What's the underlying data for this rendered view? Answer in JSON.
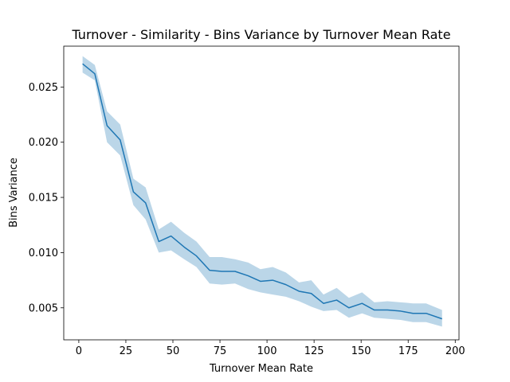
{
  "chart_data": {
    "type": "line",
    "title": "Turnover - Similarity - Bins Variance by Turnover Mean Rate",
    "xlabel": "Turnover Mean Rate",
    "ylabel": "Bins Variance",
    "xlim": [
      -8,
      202
    ],
    "ylim": [
      0.0021,
      0.0287
    ],
    "x_ticks": [
      0,
      25,
      50,
      75,
      100,
      125,
      150,
      175,
      200
    ],
    "x_tick_labels": [
      "0",
      "25",
      "50",
      "75",
      "100",
      "125",
      "150",
      "175",
      "200"
    ],
    "y_ticks": [
      0.005,
      0.01,
      0.015,
      0.02,
      0.025
    ],
    "y_tick_labels": [
      "0.005",
      "0.010",
      "0.015",
      "0.020",
      "0.025"
    ],
    "grid": false,
    "line_color": "#1f77b4",
    "band_color": "#1f77b4",
    "series": [
      {
        "x": [
          2,
          8.5,
          15,
          22,
          29,
          35.5,
          42.5,
          49,
          56,
          62.5,
          69.5,
          76,
          83,
          90,
          96.5,
          103,
          110,
          117,
          123.5,
          130,
          137,
          143.5,
          150.5,
          157,
          164,
          171,
          177.5,
          184.5,
          193
        ],
        "values": [
          0.0271,
          0.0262,
          0.0215,
          0.0202,
          0.0155,
          0.0145,
          0.011,
          0.0115,
          0.0105,
          0.0097,
          0.0084,
          0.0083,
          0.0083,
          0.0079,
          0.0074,
          0.0075,
          0.0071,
          0.0065,
          0.0063,
          0.0054,
          0.0057,
          0.005,
          0.0054,
          0.0048,
          0.0048,
          0.0047,
          0.0045,
          0.0045,
          0.004
        ],
        "lower": [
          0.0263,
          0.0256,
          0.02,
          0.0188,
          0.0143,
          0.013,
          0.01,
          0.0102,
          0.0094,
          0.0087,
          0.0072,
          0.0071,
          0.0072,
          0.0067,
          0.0064,
          0.0062,
          0.006,
          0.0056,
          0.0051,
          0.0047,
          0.0048,
          0.0041,
          0.0045,
          0.0041,
          0.004,
          0.0039,
          0.0037,
          0.0037,
          0.0033
        ],
        "upper": [
          0.0278,
          0.027,
          0.0228,
          0.0216,
          0.0167,
          0.0159,
          0.0121,
          0.0128,
          0.0118,
          0.011,
          0.0096,
          0.0096,
          0.0094,
          0.0091,
          0.0085,
          0.0087,
          0.0082,
          0.0073,
          0.0075,
          0.0062,
          0.0068,
          0.0059,
          0.0064,
          0.0055,
          0.0056,
          0.0055,
          0.0054,
          0.0054,
          0.0048
        ]
      }
    ]
  }
}
